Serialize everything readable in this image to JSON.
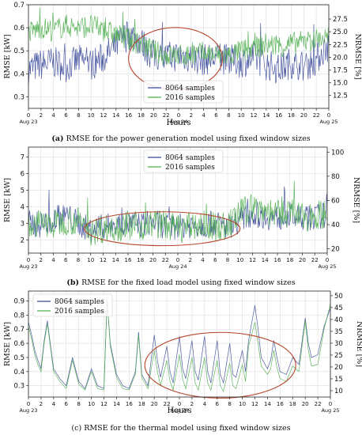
{
  "colors": {
    "series_8064": "#3b4a9a",
    "series_2016": "#4fae4f",
    "ellipse": "#b5462a",
    "grid": "#dcdcdc"
  },
  "x_ticks": [
    "0",
    "2",
    "4",
    "6",
    "8",
    "10",
    "12",
    "14",
    "16",
    "18",
    "20",
    "22",
    "0",
    "2",
    "4",
    "6",
    "8",
    "10",
    "12",
    "14",
    "16",
    "18",
    "20",
    "22",
    "0"
  ],
  "x_date_labels": {
    "start": "Aug 23",
    "mid": "Aug 24",
    "end": "Aug 25"
  },
  "chart_data": [
    {
      "id": "a",
      "type": "line",
      "caption_prefix": "(a)",
      "caption": "RMSE for the power generation model using fixed window sizes",
      "xlabel": "Hours",
      "ylabel": "RMSE [kW]",
      "ylabel_right": "NRMSE [%]",
      "xlim": [
        0,
        48
      ],
      "ylim": [
        0.25,
        0.7
      ],
      "y_ticks": [
        "0.3",
        "0.4",
        "0.5",
        "0.6",
        "0.7"
      ],
      "y_tick_values": [
        0.3,
        0.4,
        0.5,
        0.6,
        0.7
      ],
      "y2_ticks": [
        "12.5",
        "15.0",
        "17.5",
        "20.0",
        "22.5",
        "25.0",
        "27.5"
      ],
      "y2_tick_values": [
        0.306,
        0.361,
        0.416,
        0.472,
        0.527,
        0.583,
        0.638
      ],
      "legend": "bottom-center",
      "ellipse_x": [
        16,
        31
      ],
      "series": [
        {
          "name": "8064 samples",
          "x": [
            0,
            2,
            4,
            6,
            8,
            10,
            12,
            14,
            15,
            16,
            17,
            18,
            19,
            20,
            22,
            24,
            26,
            28,
            30,
            32,
            34,
            36,
            38,
            40,
            42,
            44,
            46,
            47,
            48
          ],
          "values": [
            0.42,
            0.44,
            0.45,
            0.43,
            0.46,
            0.44,
            0.47,
            0.52,
            0.55,
            0.57,
            0.56,
            0.54,
            0.5,
            0.48,
            0.47,
            0.48,
            0.47,
            0.46,
            0.47,
            0.46,
            0.45,
            0.47,
            0.44,
            0.42,
            0.45,
            0.43,
            0.46,
            0.5,
            0.52
          ],
          "noise": 0.07
        },
        {
          "name": "2016 samples",
          "x": [
            0,
            2,
            4,
            6,
            8,
            10,
            12,
            14,
            16,
            18,
            20,
            22,
            24,
            26,
            28,
            30,
            32,
            34,
            36,
            38,
            40,
            42,
            44,
            46,
            48
          ],
          "values": [
            0.58,
            0.6,
            0.59,
            0.61,
            0.6,
            0.61,
            0.59,
            0.57,
            0.55,
            0.53,
            0.5,
            0.48,
            0.48,
            0.48,
            0.49,
            0.48,
            0.48,
            0.5,
            0.51,
            0.53,
            0.52,
            0.53,
            0.54,
            0.55,
            0.56
          ],
          "noise": 0.05
        }
      ]
    },
    {
      "id": "b",
      "type": "line",
      "caption_prefix": "(b)",
      "caption": "RMSE for the fixed load model using fixed window sizes",
      "xlabel": "Hours",
      "ylabel": "RMSE [kW]",
      "ylabel_right": "NRMSE [%]",
      "xlim": [
        0,
        48
      ],
      "ylim": [
        1.2,
        7.6
      ],
      "y_ticks": [
        "2",
        "3",
        "4",
        "5",
        "6",
        "7"
      ],
      "y_tick_values": [
        2,
        3,
        4,
        5,
        6,
        7
      ],
      "y2_ticks": [
        "20",
        "40",
        "60",
        "80",
        "100"
      ],
      "y2_tick_values": [
        1.46,
        2.92,
        4.38,
        5.84,
        7.3
      ],
      "legend": "top-center",
      "ellipse_x": [
        9,
        34
      ],
      "series": [
        {
          "name": "8064 samples",
          "x": [
            0,
            2,
            4,
            6,
            8,
            10,
            12,
            14,
            16,
            18,
            20,
            22,
            24,
            26,
            28,
            30,
            32,
            34,
            36,
            38,
            40,
            42,
            44,
            46,
            48
          ],
          "values": [
            3.0,
            2.9,
            3.2,
            3.5,
            3.0,
            2.6,
            2.8,
            2.9,
            3.0,
            2.9,
            3.1,
            2.8,
            2.8,
            2.9,
            2.9,
            3.0,
            2.8,
            3.2,
            3.6,
            3.4,
            3.3,
            3.5,
            3.2,
            3.4,
            3.5
          ],
          "noise": 0.8
        },
        {
          "name": "2016 samples",
          "x": [
            0,
            2,
            4,
            6,
            8,
            10,
            12,
            14,
            16,
            18,
            20,
            22,
            24,
            26,
            28,
            30,
            32,
            34,
            36,
            38,
            40,
            42,
            44,
            46,
            48
          ],
          "values": [
            2.9,
            3.0,
            2.9,
            3.2,
            3.1,
            2.5,
            2.7,
            2.8,
            2.9,
            2.8,
            3.0,
            2.9,
            2.7,
            2.8,
            2.9,
            2.8,
            2.8,
            3.6,
            4.0,
            3.8,
            3.5,
            3.7,
            3.3,
            3.5,
            3.6
          ],
          "noise": 0.9
        }
      ]
    },
    {
      "id": "c",
      "type": "line",
      "caption_prefix": "(c)",
      "caption": "RMSE for the thermal model using fixed window sizes",
      "xlabel": "Hours",
      "ylabel": "RMSE [kW]",
      "ylabel_right": "NRMSE [%]",
      "xlim": [
        0,
        48
      ],
      "ylim": [
        0.22,
        0.97
      ],
      "y_ticks": [
        "0.3",
        "0.4",
        "0.5",
        "0.6",
        "0.7",
        "0.8",
        "0.9"
      ],
      "y_tick_values": [
        0.3,
        0.4,
        0.5,
        0.6,
        0.7,
        0.8,
        0.9
      ],
      "y2_ticks": [
        "10",
        "15",
        "20",
        "25",
        "30",
        "35",
        "40",
        "45",
        "50"
      ],
      "y2_tick_values": [
        0.265,
        0.349,
        0.433,
        0.517,
        0.601,
        0.685,
        0.769,
        0.853,
        0.937
      ],
      "legend": "top-left",
      "ellipse_x": [
        18.5,
        42.5
      ],
      "series": [
        {
          "name": "8064 samples",
          "x": [
            0,
            0.5,
            1,
            1.5,
            2,
            2.5,
            3,
            4,
            5,
            6,
            7,
            8,
            9,
            10,
            11,
            12,
            12.5,
            13,
            14,
            15,
            16,
            17,
            17.5,
            18,
            19,
            20,
            20.5,
            21,
            22,
            22.5,
            23,
            24,
            24.5,
            25,
            26,
            26.5,
            27,
            28,
            28.5,
            29,
            30,
            30.5,
            31,
            32,
            32.5,
            33,
            34,
            34.5,
            35,
            36,
            36.5,
            37,
            38,
            38.5,
            39,
            39.5,
            40,
            41,
            42,
            43,
            44,
            44.5,
            45,
            46,
            47,
            48
          ],
          "values": [
            0.75,
            0.66,
            0.55,
            0.48,
            0.42,
            0.62,
            0.76,
            0.42,
            0.35,
            0.3,
            0.5,
            0.33,
            0.28,
            0.42,
            0.3,
            0.28,
            0.9,
            0.6,
            0.38,
            0.3,
            0.28,
            0.4,
            0.68,
            0.38,
            0.3,
            0.66,
            0.48,
            0.36,
            0.58,
            0.4,
            0.32,
            0.65,
            0.42,
            0.35,
            0.62,
            0.4,
            0.34,
            0.65,
            0.4,
            0.32,
            0.62,
            0.38,
            0.32,
            0.6,
            0.38,
            0.36,
            0.55,
            0.4,
            0.62,
            0.87,
            0.7,
            0.5,
            0.42,
            0.48,
            0.62,
            0.5,
            0.4,
            0.38,
            0.5,
            0.45,
            0.78,
            0.6,
            0.5,
            0.52,
            0.72,
            0.85
          ]
        },
        {
          "name": "2016 samples",
          "x": [
            0,
            0.5,
            1,
            1.5,
            2,
            2.5,
            3,
            4,
            5,
            6,
            7,
            8,
            9,
            10,
            11,
            12,
            12.5,
            13,
            14,
            15,
            16,
            17,
            17.5,
            18,
            19,
            20,
            20.5,
            21,
            22,
            22.5,
            23,
            24,
            24.5,
            25,
            26,
            26.5,
            27,
            28,
            28.5,
            29,
            30,
            30.5,
            31,
            32,
            32.5,
            33,
            34,
            34.5,
            35,
            36,
            36.5,
            37,
            38,
            38.5,
            39,
            39.5,
            40,
            41,
            42,
            43,
            44,
            44.5,
            45,
            46,
            47,
            48
          ],
          "values": [
            0.72,
            0.63,
            0.52,
            0.45,
            0.4,
            0.6,
            0.74,
            0.4,
            0.33,
            0.28,
            0.48,
            0.31,
            0.27,
            0.4,
            0.28,
            0.27,
            0.92,
            0.58,
            0.36,
            0.28,
            0.27,
            0.38,
            0.66,
            0.36,
            0.28,
            0.55,
            0.4,
            0.3,
            0.48,
            0.33,
            0.27,
            0.52,
            0.35,
            0.28,
            0.5,
            0.32,
            0.27,
            0.5,
            0.32,
            0.27,
            0.48,
            0.3,
            0.26,
            0.46,
            0.3,
            0.28,
            0.45,
            0.33,
            0.58,
            0.75,
            0.6,
            0.44,
            0.38,
            0.42,
            0.55,
            0.43,
            0.35,
            0.33,
            0.44,
            0.4,
            0.76,
            0.55,
            0.44,
            0.45,
            0.7,
            0.88
          ]
        }
      ]
    }
  ]
}
